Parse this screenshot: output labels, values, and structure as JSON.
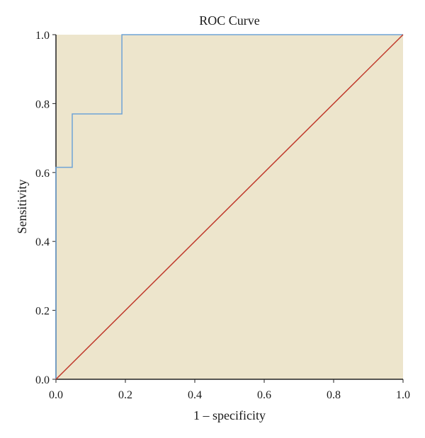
{
  "chart_data": {
    "type": "line",
    "title": "ROC Curve",
    "xlabel": "1 – specificity",
    "ylabel": "Sensitivity",
    "xlim": [
      0,
      1
    ],
    "ylim": [
      0,
      1
    ],
    "x_ticks": [
      "0.0",
      "0.2",
      "0.4",
      "0.6",
      "0.8",
      "1.0"
    ],
    "y_ticks": [
      "0.0",
      "0.2",
      "0.4",
      "0.6",
      "0.8",
      "1.0"
    ],
    "grid": false,
    "legend": "none",
    "background_color": "#ede5cc",
    "series": [
      {
        "color": "#6fa3d6",
        "step": true,
        "points": [
          [
            0.0,
            0.0
          ],
          [
            0.0,
            0.615
          ],
          [
            0.047,
            0.615
          ],
          [
            0.047,
            0.77
          ],
          [
            0.19,
            0.77
          ],
          [
            0.19,
            1.0
          ],
          [
            1.0,
            1.0
          ]
        ]
      },
      {
        "color": "#c0392b",
        "points": [
          [
            0.0,
            0.0
          ],
          [
            1.0,
            1.0
          ]
        ]
      }
    ]
  }
}
